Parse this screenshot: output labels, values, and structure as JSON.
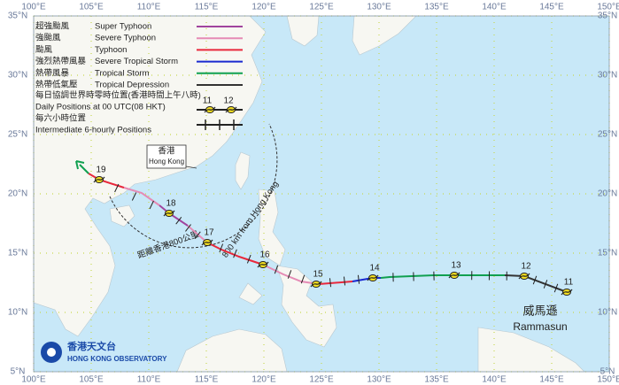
{
  "map": {
    "lon_labels": [
      "100°E",
      "105°E",
      "110°E",
      "115°E",
      "120°E",
      "125°E",
      "130°E",
      "135°E",
      "140°E",
      "145°E",
      "150°E"
    ],
    "lat_labels": [
      "35°N",
      "30°N",
      "25°N",
      "20°N",
      "15°N",
      "10°N",
      "5°N"
    ]
  },
  "legend": {
    "items": [
      {
        "zh": "超強颱風",
        "en": "Super Typhoon",
        "color": "#a0449e"
      },
      {
        "zh": "強颱風",
        "en": "Severe Typhoon",
        "color": "#e58bb5"
      },
      {
        "zh": "颱風",
        "en": "Typhoon",
        "color": "#e8283c"
      },
      {
        "zh": "強烈熱帶風暴",
        "en": "Severe Tropical Storm",
        "color": "#1a2ad0"
      },
      {
        "zh": "熱帶風暴",
        "en": "Tropical Storm",
        "color": "#10a050"
      },
      {
        "zh": "熱帶低氣壓",
        "en": "Tropical Depression",
        "color": "#333333"
      }
    ],
    "daily": {
      "zh": "每日協調世界時零時位置(香港時間上午八時)",
      "en": "Daily Positions at 00 UTC(08 HKT)",
      "sample_days": [
        "11",
        "12"
      ]
    },
    "intermediate": {
      "zh": "每六小時位置",
      "en": "Intermediate 6-hourly Positions"
    }
  },
  "hong_kong": {
    "zh": "香港",
    "en": "Hong Kong"
  },
  "range_circle": {
    "zh": "距離香港800公里",
    "en": "800 km from Hong Kong"
  },
  "storm": {
    "zh": "威馬遜",
    "en": "Rammasun"
  },
  "track": {
    "days": [
      "11",
      "12",
      "13",
      "14",
      "15",
      "16",
      "17",
      "18",
      "19"
    ]
  },
  "logo": {
    "zh": "香港天文台",
    "en": "HONG KONG OBSERVATORY"
  }
}
